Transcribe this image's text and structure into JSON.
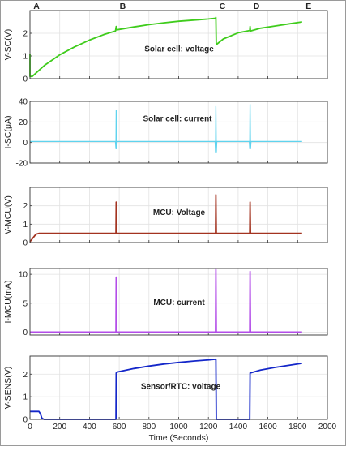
{
  "markers": [
    "A",
    "B",
    "C",
    "D",
    "E"
  ],
  "marker_times": [
    0,
    580,
    1250,
    1480,
    1830
  ],
  "x_axis": {
    "label": "Time (Seconds)",
    "ticks": [
      "0",
      "200",
      "400",
      "600",
      "800",
      "1000",
      "1200",
      "1400",
      "1600",
      "1800",
      "2000"
    ]
  },
  "chart_data": [
    {
      "type": "line",
      "ylabel": "V-SC(V)",
      "annotation": "Solar cell: voltage",
      "xlim": [
        0,
        2000
      ],
      "ylim": [
        0,
        3
      ],
      "yticks": [
        "0",
        "1",
        "2"
      ],
      "grid": true,
      "color": "#3fcc1c",
      "series": [
        {
          "x": [
            0,
            0,
            15,
            100,
            200,
            300,
            400,
            500,
            575,
            580,
            583,
            700,
            800,
            900,
            1000,
            1100,
            1200,
            1248,
            1250,
            1253,
            1300,
            1400,
            1478,
            1480,
            1483,
            1550,
            1650,
            1750,
            1830
          ],
          "y": [
            1.1,
            0.1,
            0.1,
            0.6,
            1.05,
            1.4,
            1.7,
            1.95,
            2.1,
            2.3,
            2.15,
            2.28,
            2.38,
            2.46,
            2.53,
            2.58,
            2.63,
            2.66,
            2.7,
            1.5,
            1.75,
            2.02,
            2.12,
            2.3,
            2.1,
            2.22,
            2.32,
            2.42,
            2.5
          ]
        }
      ]
    },
    {
      "type": "line",
      "ylabel": "I-SC(μA)",
      "annotation": "Solar cell: current",
      "xlim": [
        0,
        2000
      ],
      "ylim": [
        -20,
        40
      ],
      "yticks": [
        "-20",
        "0",
        "20",
        "40"
      ],
      "grid": true,
      "color": "#5fd3ee",
      "series": [
        {
          "x": [
            0,
            575,
            578,
            580,
            583,
            586,
            1245,
            1248,
            1250,
            1253,
            1256,
            1475,
            1478,
            1480,
            1483,
            1486,
            1830
          ],
          "y": [
            1,
            1,
            -6,
            31,
            -6,
            1,
            1,
            -10,
            35,
            -10,
            1,
            1,
            -6,
            37,
            -6,
            1,
            1
          ]
        }
      ]
    },
    {
      "type": "line",
      "ylabel": "V-MCU(V)",
      "annotation": "MCU: Voltage",
      "xlim": [
        0,
        2000
      ],
      "ylim": [
        0,
        3
      ],
      "yticks": [
        "0",
        "1",
        "2"
      ],
      "grid": true,
      "color": "#a33320",
      "series": [
        {
          "x": [
            0,
            20,
            40,
            60,
            80,
            575,
            578,
            580,
            583,
            586,
            1245,
            1248,
            1250,
            1253,
            1256,
            1475,
            1478,
            1480,
            1483,
            1486,
            1830
          ],
          "y": [
            0.05,
            0.25,
            0.45,
            0.5,
            0.5,
            0.5,
            0.5,
            2.2,
            0.5,
            0.5,
            0.5,
            0.5,
            2.6,
            0.5,
            0.5,
            0.5,
            0.5,
            2.2,
            0.5,
            0.5,
            0.5
          ]
        }
      ]
    },
    {
      "type": "line",
      "ylabel": "I-MCU(mA)",
      "annotation": "MCU: current",
      "xlim": [
        0,
        2000
      ],
      "ylim": [
        -0.5,
        11
      ],
      "yticks": [
        "0",
        "5",
        "10"
      ],
      "grid": true,
      "color": "#b34de8",
      "series": [
        {
          "x": [
            0,
            575,
            578,
            580,
            583,
            586,
            1245,
            1248,
            1250,
            1253,
            1256,
            1475,
            1478,
            1480,
            1483,
            1486,
            1830
          ],
          "y": [
            0,
            0,
            0,
            9.5,
            0,
            0,
            0,
            0,
            10.8,
            0,
            0,
            0,
            0,
            10.5,
            0,
            0,
            0
          ]
        }
      ]
    },
    {
      "type": "line",
      "ylabel": "V-SENS(V)",
      "annotation": "Sensor/RTC: voltage",
      "xlim": [
        0,
        2000
      ],
      "ylim": [
        0,
        2.8
      ],
      "yticks": [
        "0",
        "1",
        "2"
      ],
      "grid": true,
      "color": "#1427c9",
      "series": [
        {
          "x": [
            0,
            60,
            70,
            80,
            95,
            575,
            578,
            580,
            590,
            700,
            800,
            900,
            1000,
            1100,
            1200,
            1248,
            1250,
            1253,
            1475,
            1478,
            1480,
            1550,
            1650,
            1750,
            1830
          ],
          "y": [
            0.35,
            0.35,
            0.25,
            0.05,
            0,
            0,
            0,
            2.05,
            2.1,
            2.25,
            2.36,
            2.45,
            2.52,
            2.58,
            2.63,
            2.66,
            2.67,
            0,
            0,
            0,
            2.05,
            2.18,
            2.3,
            2.4,
            2.48
          ]
        }
      ]
    }
  ]
}
